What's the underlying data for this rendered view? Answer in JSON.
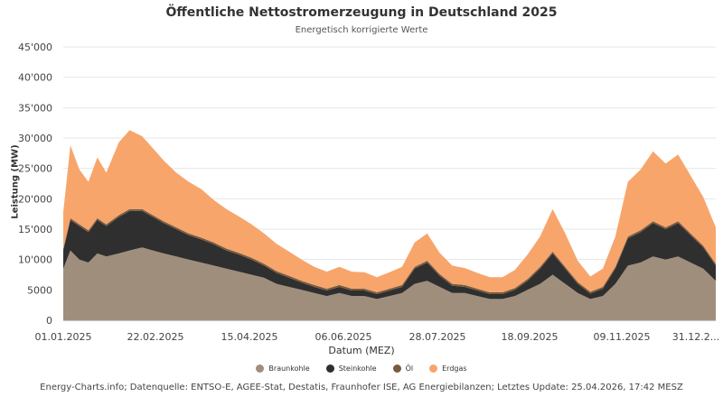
{
  "chart_data": {
    "type": "area",
    "title": "Öffentliche Nettostromerzeugung in Deutschland 2025",
    "subtitle": "Energetisch korrigierte Werte",
    "xlabel": "Datum (MEZ)",
    "ylabel": "Leistung (MW)",
    "ylim": [
      0,
      45000
    ],
    "y_ticks": [
      0,
      5000,
      10000,
      15000,
      20000,
      25000,
      30000,
      35000,
      40000,
      45000
    ],
    "y_tick_labels": [
      "0",
      "5000",
      "10'000",
      "15'000",
      "20'000",
      "25'000",
      "30'000",
      "35'000",
      "40'000",
      "45'000"
    ],
    "x_tick_labels": [
      "01.01.2025",
      "22.02.2025",
      "15.04.2025",
      "06.06.2025",
      "28.07.2025",
      "18.09.2025",
      "09.11.2025",
      "31.12.2..."
    ],
    "stacked": true,
    "grid": true,
    "legend_position": "bottom",
    "x": [
      "2025-01-01",
      "2025-01-05",
      "2025-01-10",
      "2025-01-15",
      "2025-01-20",
      "2025-01-25",
      "2025-02-01",
      "2025-02-07",
      "2025-02-14",
      "2025-02-20",
      "2025-02-26",
      "2025-03-05",
      "2025-03-12",
      "2025-03-19",
      "2025-03-26",
      "2025-04-02",
      "2025-04-09",
      "2025-04-16",
      "2025-04-23",
      "2025-04-30",
      "2025-05-07",
      "2025-05-14",
      "2025-05-21",
      "2025-05-28",
      "2025-06-04",
      "2025-06-11",
      "2025-06-18",
      "2025-06-25",
      "2025-07-02",
      "2025-07-09",
      "2025-07-16",
      "2025-07-23",
      "2025-07-30",
      "2025-08-06",
      "2025-08-13",
      "2025-08-20",
      "2025-08-27",
      "2025-09-03",
      "2025-09-10",
      "2025-09-17",
      "2025-09-24",
      "2025-10-01",
      "2025-10-08",
      "2025-10-15",
      "2025-10-22",
      "2025-10-29",
      "2025-11-05",
      "2025-11-12",
      "2025-11-19",
      "2025-11-26",
      "2025-12-03",
      "2025-12-10",
      "2025-12-17",
      "2025-12-24",
      "2025-12-31"
    ],
    "series": [
      {
        "name": "Braunkohle",
        "color": "#a08e7c",
        "values": [
          8500,
          11500,
          10000,
          9500,
          11000,
          10500,
          11000,
          11500,
          12000,
          11500,
          11000,
          10500,
          10000,
          9500,
          9000,
          8500,
          8000,
          7500,
          7000,
          6000,
          5500,
          5000,
          4500,
          4000,
          4500,
          4000,
          4000,
          3500,
          4000,
          4500,
          6000,
          6500,
          5500,
          4500,
          4500,
          4000,
          3500,
          3500,
          4000,
          5000,
          6000,
          7500,
          6000,
          4500,
          3500,
          4000,
          6000,
          9000,
          9500,
          10500,
          10000,
          10500,
          9500,
          8500,
          6500
        ]
      },
      {
        "name": "Steinkohle",
        "color": "#2f2f2f",
        "values": [
          3000,
          5000,
          5500,
          5000,
          5500,
          5000,
          6000,
          6500,
          6000,
          5500,
          5000,
          4500,
          4000,
          3800,
          3500,
          3000,
          2800,
          2500,
          2000,
          1800,
          1500,
          1200,
          1000,
          900,
          1000,
          900,
          900,
          800,
          900,
          1000,
          2500,
          3000,
          1800,
          1200,
          1000,
          900,
          800,
          800,
          1000,
          1500,
          2500,
          3500,
          2500,
          1500,
          900,
          1200,
          2500,
          4500,
          5000,
          5500,
          5000,
          5500,
          4500,
          3500,
          2500
        ]
      },
      {
        "name": "Öl",
        "color": "#7a5a3c",
        "values": [
          300,
          300,
          300,
          300,
          300,
          300,
          300,
          300,
          300,
          300,
          300,
          300,
          300,
          300,
          300,
          300,
          300,
          300,
          300,
          300,
          300,
          300,
          300,
          300,
          300,
          300,
          300,
          300,
          300,
          300,
          300,
          300,
          300,
          300,
          300,
          300,
          300,
          300,
          300,
          300,
          300,
          300,
          300,
          300,
          300,
          300,
          300,
          300,
          300,
          300,
          300,
          300,
          300,
          300,
          300
        ]
      },
      {
        "name": "Erdgas",
        "color": "#f7a56b",
        "values": [
          6000,
          12000,
          9000,
          8000,
          10000,
          8500,
          12000,
          13000,
          12000,
          11000,
          10000,
          9000,
          8500,
          8000,
          7000,
          6500,
          6000,
          5500,
          5000,
          4500,
          4000,
          3500,
          3000,
          2800,
          3000,
          2800,
          2700,
          2500,
          2700,
          3000,
          4000,
          4500,
          3500,
          3000,
          2800,
          2600,
          2500,
          2500,
          3000,
          4000,
          5000,
          7000,
          5500,
          3500,
          2500,
          3000,
          5000,
          9000,
          10000,
          11500,
          10500,
          11000,
          9500,
          8000,
          6000
        ]
      }
    ]
  },
  "source": "Energy-Charts.info; Datenquelle: ENTSO-E, AGEE-Stat, Destatis, Fraunhofer ISE, AG Energiebilanzen; Letztes Update: 25.04.2026, 17:42 MESZ"
}
